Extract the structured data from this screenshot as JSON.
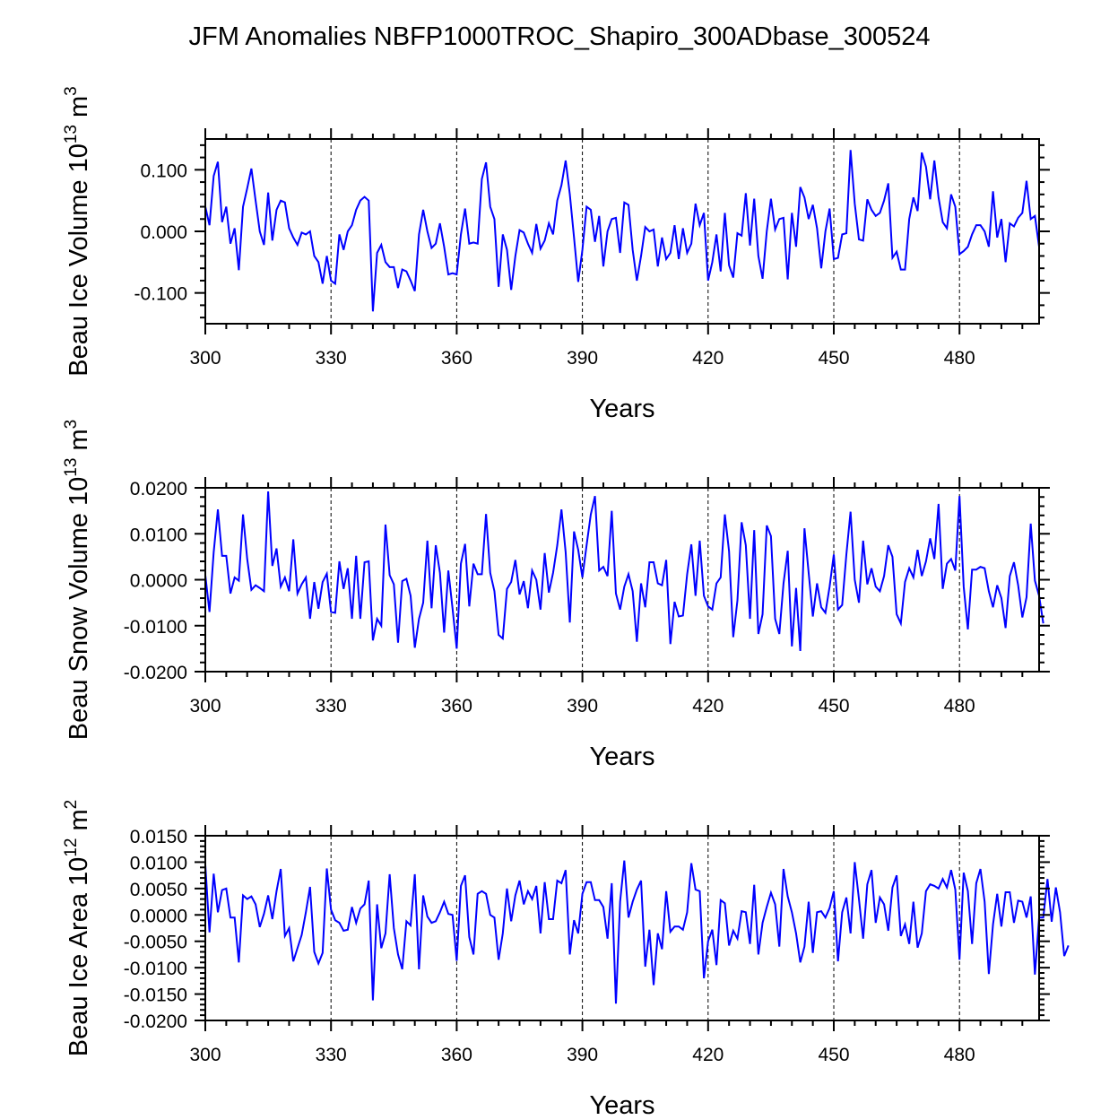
{
  "title": "JFM Anomalies NBFP1000TROC_Shapiro_300ADbase_300524",
  "colors": {
    "line": "#0000ff",
    "axis": "#000000",
    "ref": "#000000"
  },
  "chart_data": [
    {
      "type": "line",
      "ylabel_main": "Beau Ice Volume 10",
      "ylabel_exp": "13",
      "ylabel_unit": " m",
      "ylabel_unit_exp": "3",
      "xlabel": "Years",
      "xlim": [
        300,
        499
      ],
      "ylim": [
        -0.15,
        0.15
      ],
      "xticks": [
        300,
        330,
        360,
        390,
        420,
        450,
        480
      ],
      "xtick_labels": [
        "300",
        "330",
        "360",
        "390",
        "420",
        "450",
        "480"
      ],
      "yticks": [
        0.1,
        0.0,
        -0.1
      ],
      "ytick_labels": [
        "0.100",
        "0.000",
        "-0.100"
      ],
      "vlines": [
        330,
        360,
        390,
        420,
        450,
        480
      ],
      "x_start": 300,
      "values": [
        0.04,
        0.01,
        0.09,
        0.113,
        0.015,
        0.04,
        -0.02,
        0.005,
        -0.063,
        0.04,
        0.07,
        0.102,
        0.05,
        0.0,
        -0.022,
        0.063,
        -0.015,
        0.035,
        0.05,
        0.047,
        0.005,
        -0.01,
        -0.022,
        -0.002,
        -0.005,
        0.0,
        -0.04,
        -0.05,
        -0.085,
        -0.04,
        -0.08,
        -0.085,
        -0.005,
        -0.03,
        0.0,
        0.01,
        0.035,
        0.05,
        0.056,
        0.05,
        -0.13,
        -0.035,
        -0.022,
        -0.05,
        -0.058,
        -0.058,
        -0.092,
        -0.062,
        -0.065,
        -0.08,
        -0.097,
        -0.005,
        0.035,
        0.0,
        -0.027,
        -0.02,
        0.013,
        -0.025,
        -0.07,
        -0.068,
        -0.07,
        -0.005,
        0.037,
        -0.02,
        -0.018,
        -0.02,
        0.085,
        0.112,
        0.04,
        0.02,
        -0.09,
        -0.005,
        -0.03,
        -0.095,
        -0.04,
        0.002,
        -0.002,
        -0.02,
        -0.035,
        0.012,
        -0.028,
        -0.015,
        0.013,
        -0.005,
        0.05,
        0.075,
        0.115,
        0.06,
        -0.01,
        -0.082,
        -0.03,
        0.04,
        0.035,
        -0.017,
        0.025,
        -0.057,
        0.0,
        0.02,
        0.022,
        -0.035,
        0.047,
        0.043,
        -0.03,
        -0.08,
        -0.04,
        0.007,
        0.0,
        0.003,
        -0.057,
        -0.01,
        -0.045,
        -0.035,
        0.01,
        -0.045,
        0.005,
        -0.035,
        -0.02,
        0.045,
        0.01,
        0.03,
        -0.08,
        -0.05,
        -0.005,
        -0.065,
        0.03,
        -0.055,
        -0.075,
        -0.003,
        -0.007,
        0.062,
        -0.023,
        0.053,
        -0.04,
        -0.077,
        0.0,
        0.053,
        0.003,
        0.02,
        0.022,
        -0.078,
        0.03,
        -0.025,
        0.072,
        0.055,
        0.02,
        0.043,
        0.005,
        -0.06,
        0.0,
        0.037,
        -0.045,
        -0.043,
        -0.005,
        -0.003,
        0.132,
        0.045,
        -0.013,
        -0.015,
        0.052,
        0.035,
        0.025,
        0.03,
        0.05,
        0.078,
        -0.043,
        -0.033,
        -0.062,
        -0.062,
        0.02,
        0.055,
        0.033,
        0.128,
        0.105,
        0.052,
        0.115,
        0.055,
        0.015,
        0.005,
        0.06,
        0.04,
        -0.037,
        -0.032,
        -0.025,
        -0.005,
        0.01,
        0.01,
        0.0,
        -0.025,
        0.065,
        -0.01,
        0.02,
        -0.05,
        0.013,
        0.008,
        0.022,
        0.03,
        0.082,
        0.02,
        0.025,
        -0.025
      ]
    },
    {
      "type": "line",
      "ylabel_main": "Beau Snow Volume 10",
      "ylabel_exp": "13",
      "ylabel_unit": " m",
      "ylabel_unit_exp": "3",
      "xlabel": "Years",
      "xlim": [
        300,
        499
      ],
      "ylim": [
        -0.02,
        0.02
      ],
      "xticks": [
        300,
        330,
        360,
        390,
        420,
        450,
        480
      ],
      "xtick_labels": [
        "300",
        "330",
        "360",
        "390",
        "420",
        "450",
        "480"
      ],
      "yticks": [
        0.02,
        0.01,
        0.0,
        -0.01,
        -0.02
      ],
      "ytick_labels": [
        "0.0200",
        "0.0100",
        "0.0000",
        "-0.0100",
        "-0.0200"
      ],
      "vlines": [
        330,
        360,
        390,
        420,
        450,
        480
      ],
      "x_start": 300,
      "values": [
        0.001,
        -0.007,
        0.006,
        0.0153,
        0.0052,
        0.0052,
        -0.003,
        0.0005,
        -0.0002,
        0.0142,
        0.0045,
        -0.0022,
        -0.0012,
        -0.0018,
        -0.0025,
        0.0192,
        0.003,
        0.0068,
        -0.0015,
        0.0005,
        -0.0025,
        0.0088,
        -0.003,
        -0.001,
        0.0005,
        -0.0085,
        -0.0005,
        -0.0063,
        -0.0005,
        0.0013,
        -0.007,
        -0.0072,
        0.004,
        -0.002,
        0.0025,
        -0.0085,
        0.0052,
        -0.0085,
        0.0038,
        0.004,
        -0.0132,
        -0.0085,
        -0.01,
        0.012,
        0.001,
        -0.001,
        -0.0137,
        -0.0003,
        0.0002,
        -0.0035,
        -0.0148,
        -0.0085,
        -0.005,
        0.0085,
        -0.0062,
        0.0075,
        0.0015,
        -0.0115,
        0.002,
        -0.0062,
        -0.015,
        0.0035,
        0.0078,
        -0.0058,
        0.0035,
        0.0012,
        0.0012,
        0.0143,
        0.0015,
        -0.0025,
        -0.012,
        -0.0128,
        -0.002,
        -0.0005,
        0.0043,
        -0.0032,
        -0.0003,
        -0.0062,
        0.002,
        0.0,
        -0.0065,
        0.0058,
        -0.0028,
        0.0015,
        0.0075,
        0.0153,
        0.006,
        -0.0093,
        0.0105,
        0.0065,
        0.0005,
        0.0075,
        0.0142,
        0.0182,
        0.002,
        0.0028,
        0.0008,
        0.015,
        -0.003,
        -0.0065,
        -0.0015,
        0.0012,
        -0.0025,
        -0.0135,
        -0.0008,
        -0.006,
        0.0038,
        0.0038,
        -0.0008,
        -0.0012,
        0.0043,
        -0.014,
        -0.0048,
        -0.008,
        -0.0078,
        0.0012,
        0.0077,
        -0.0035,
        0.0085,
        -0.0035,
        -0.0058,
        -0.0065,
        -0.0008,
        0.0005,
        0.0142,
        0.0062,
        -0.0125,
        -0.0045,
        0.0125,
        0.0075,
        -0.0085,
        0.0108,
        -0.0118,
        -0.0075,
        0.0118,
        0.0095,
        -0.0085,
        -0.0118,
        -0.0008,
        0.0063,
        -0.0145,
        -0.0018,
        -0.0155,
        0.0112,
        0.0015,
        -0.008,
        -0.0008,
        -0.006,
        -0.0072,
        -0.0015,
        0.0055,
        -0.0065,
        -0.0055,
        0.0055,
        0.0148,
        0.0,
        -0.005,
        0.0085,
        -0.001,
        0.0025,
        -0.0015,
        -0.0025,
        0.0008,
        0.0075,
        0.005,
        -0.0075,
        -0.0095,
        -0.0005,
        0.0025,
        0.0005,
        0.0065,
        0.0008,
        0.004,
        0.009,
        0.0045,
        0.0165,
        -0.002,
        0.0035,
        0.0045,
        0.002,
        0.0182,
        -0.0015,
        -0.0108,
        0.0022,
        0.0022,
        0.0028,
        0.0025,
        -0.0025,
        -0.006,
        -0.0012,
        -0.004,
        -0.0105,
        0.0008,
        0.0038,
        -0.0012,
        -0.0082,
        -0.0038,
        0.0122,
        -0.0002,
        -0.0035,
        -0.0095
      ]
    },
    {
      "type": "line",
      "ylabel_main": "Beau Ice Area 10",
      "ylabel_exp": "12",
      "ylabel_unit": " m",
      "ylabel_unit_exp": "2",
      "xlabel": "Years",
      "xlim": [
        300,
        499
      ],
      "ylim": [
        -0.02,
        0.015
      ],
      "xticks": [
        300,
        330,
        360,
        390,
        420,
        450,
        480
      ],
      "xtick_labels": [
        "300",
        "330",
        "360",
        "390",
        "420",
        "450",
        "480"
      ],
      "yticks": [
        0.015,
        0.01,
        0.005,
        0.0,
        -0.005,
        -0.01,
        -0.015,
        -0.02
      ],
      "ytick_labels": [
        "0.0150",
        "0.0100",
        "0.0050",
        "0.0000",
        "-0.0050",
        "-0.0100",
        "-0.0150",
        "-0.0200"
      ],
      "vlines": [
        330,
        360,
        390,
        420,
        450,
        480
      ],
      "x_start": 300,
      "values": [
        0.0095,
        -0.0033,
        0.0078,
        0.0005,
        0.0047,
        0.005,
        -0.0005,
        -0.0005,
        -0.009,
        0.0037,
        0.003,
        0.0035,
        0.002,
        -0.0023,
        0.0002,
        0.0037,
        -0.0008,
        0.0045,
        0.0087,
        -0.004,
        -0.0025,
        -0.0088,
        -0.0063,
        -0.0038,
        0.0005,
        0.0053,
        -0.007,
        -0.0092,
        -0.0072,
        0.0088,
        0.001,
        -0.001,
        -0.0015,
        -0.003,
        -0.0028,
        0.0015,
        -0.0015,
        0.0012,
        0.002,
        0.0065,
        -0.0162,
        0.002,
        -0.0063,
        -0.0035,
        0.0077,
        -0.0025,
        -0.0075,
        -0.0103,
        -0.0012,
        -0.002,
        0.0077,
        -0.0103,
        0.0037,
        -0.0003,
        -0.0015,
        -0.0012,
        0.0005,
        0.0025,
        0.0002,
        0.0,
        -0.0087,
        0.0055,
        0.0075,
        -0.0042,
        -0.0075,
        0.004,
        0.0045,
        0.004,
        0.0,
        -0.0005,
        -0.0085,
        -0.0035,
        0.005,
        -0.0012,
        0.0037,
        0.0065,
        0.002,
        0.0045,
        0.003,
        0.0055,
        -0.0035,
        0.0062,
        -0.0008,
        -0.0008,
        0.0065,
        0.006,
        0.0085,
        -0.0075,
        -0.001,
        -0.0035,
        0.004,
        0.0062,
        0.0062,
        0.0028,
        0.0028,
        0.0015,
        -0.0045,
        0.006,
        -0.0168,
        0.0025,
        0.0103,
        -0.0005,
        0.0025,
        0.0048,
        0.0065,
        -0.0098,
        -0.0028,
        -0.0133,
        -0.0035,
        -0.0065,
        0.0045,
        -0.0032,
        -0.0022,
        -0.0022,
        -0.0028,
        0.0005,
        0.0098,
        0.0048,
        0.0045,
        -0.012,
        -0.005,
        -0.0028,
        -0.0095,
        0.0028,
        0.0022,
        -0.0058,
        -0.003,
        -0.0045,
        0.0007,
        0.0005,
        -0.0055,
        0.0057,
        -0.0075,
        -0.0015,
        0.0015,
        0.0042,
        0.002,
        -0.006,
        0.0087,
        0.0035,
        0.0005,
        -0.0035,
        -0.009,
        -0.006,
        0.0025,
        -0.0072,
        0.0005,
        0.0007,
        -0.0005,
        0.0013,
        0.0045,
        -0.0088,
        0.0005,
        0.0033,
        -0.0035,
        0.01,
        0.003,
        -0.0045,
        0.0058,
        0.0085,
        -0.0015,
        0.0033,
        0.002,
        -0.003,
        0.0052,
        0.0075,
        -0.004,
        -0.0018,
        -0.0055,
        0.0025,
        -0.0062,
        -0.0035,
        0.0045,
        0.0058,
        0.0055,
        0.005,
        0.0068,
        0.0052,
        0.0085,
        0.0048,
        -0.0085,
        0.008,
        0.0045,
        -0.0055,
        0.006,
        0.0087,
        0.0025,
        -0.0112,
        -0.0018,
        0.004,
        -0.0022,
        0.0043,
        0.0043,
        -0.0015,
        0.0027,
        0.0025,
        -0.0005,
        0.0035,
        -0.0113,
        -0.0005,
        -0.0005,
        0.0068,
        -0.0013,
        0.0052,
        0.0005,
        -0.0078,
        -0.0058
      ]
    }
  ]
}
